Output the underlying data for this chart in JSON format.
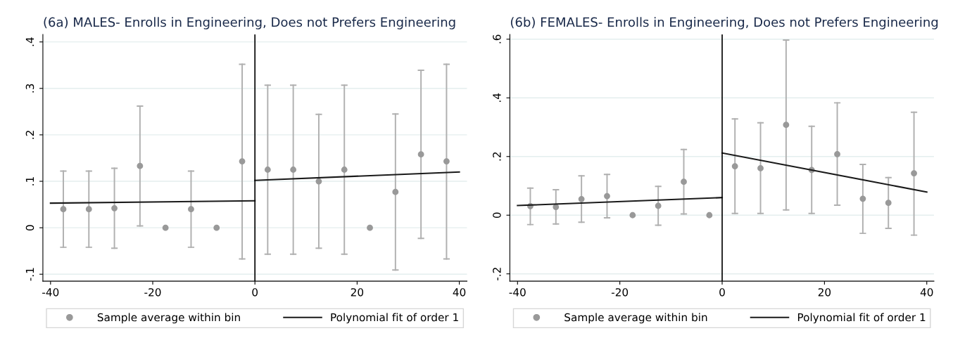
{
  "chart_data": [
    {
      "type": "scatter",
      "title": "(6a) MALES- Enrolls in Engineering, Does not Prefers Engineering",
      "xlim": [
        -41.5,
        41.5
      ],
      "xticks": [
        -40,
        -20,
        0,
        20,
        40
      ],
      "ylim": [
        -0.115,
        0.416
      ],
      "yticks": [
        {
          "value": -0.1,
          "label": "-.1"
        },
        0,
        {
          "value": 0.1,
          "label": ".1"
        },
        {
          "value": 0.2,
          "label": ".2"
        },
        {
          "value": 0.3,
          "label": ".3"
        },
        {
          "value": 0.4,
          "label": ".4"
        }
      ],
      "grid": "y",
      "legend": "bottom",
      "marker": "circle",
      "ref_lines": [
        {
          "axis": "x",
          "value": 0,
          "color": "#000000"
        }
      ],
      "series": [
        {
          "name": "Sample average within bin",
          "color": "#999999",
          "x": [
            -37.5,
            -32.5,
            -27.5,
            -22.5,
            -17.5,
            -12.5,
            -7.5,
            -2.5,
            2.5,
            7.5,
            12.5,
            17.5,
            22.5,
            27.5,
            32.5,
            37.5
          ],
          "values": [
            0.04,
            0.04,
            0.042,
            0.133,
            0,
            0.04,
            0,
            0.143,
            0.125,
            0.125,
            0.1,
            0.125,
            0,
            0.077,
            0.158,
            0.143
          ],
          "errors": [
            [
              -0.042,
              0.122
            ],
            [
              -0.042,
              0.122
            ],
            [
              -0.044,
              0.128
            ],
            [
              0.004,
              0.262
            ],
            null,
            [
              -0.042,
              0.122
            ],
            null,
            [
              -0.067,
              0.352
            ],
            [
              -0.057,
              0.307
            ],
            [
              -0.057,
              0.307
            ],
            [
              -0.044,
              0.244
            ],
            [
              -0.057,
              0.307
            ],
            null,
            [
              -0.091,
              0.245
            ],
            [
              -0.023,
              0.339
            ],
            [
              -0.067,
              0.352
            ]
          ]
        },
        {
          "name": "Polynomial fit of order 1",
          "type": "line",
          "marker": "none",
          "color": "#1a1a1a",
          "x": [
            -40,
            0
          ],
          "values": [
            0.053,
            0.058
          ]
        },
        {
          "type": "line",
          "marker": "none",
          "color": "#1a1a1a",
          "x": [
            0,
            40
          ],
          "values": [
            0.102,
            0.12
          ]
        }
      ]
    },
    {
      "type": "scatter",
      "title": "(6b) FEMALES- Enrolls in Engineering, Does not Prefers Engineering",
      "xlim": [
        -41.5,
        41.4
      ],
      "xticks": [
        -40,
        -20,
        0,
        20,
        40
      ],
      "ylim": [
        -0.225,
        0.616
      ],
      "yticks": [
        {
          "value": -0.2,
          "label": "-.2"
        },
        0,
        {
          "value": 0.2,
          "label": ".2"
        },
        {
          "value": 0.4,
          "label": ".4"
        },
        {
          "value": 0.6,
          "label": ".6"
        }
      ],
      "grid": "y",
      "legend": "bottom",
      "marker": "circle",
      "ref_lines": [
        {
          "axis": "x",
          "value": 0,
          "color": "#000000"
        }
      ],
      "series": [
        {
          "name": "Sample average within bin",
          "color": "#999999",
          "x": [
            -37.5,
            -32.5,
            -27.5,
            -22.5,
            -17.5,
            -12.5,
            -7.5,
            -2.5,
            2.5,
            7.5,
            12.5,
            17.5,
            22.5,
            27.5,
            32.5,
            37.5
          ],
          "values": [
            0.031,
            0.028,
            0.055,
            0.065,
            0,
            0.032,
            0.114,
            0,
            0.167,
            0.16,
            0.308,
            0.154,
            0.208,
            0.056,
            0.042,
            0.143
          ],
          "errors": [
            [
              -0.032,
              0.092
            ],
            [
              -0.03,
              0.087
            ],
            [
              -0.024,
              0.134
            ],
            [
              -0.009,
              0.139
            ],
            null,
            [
              -0.034,
              0.098
            ],
            [
              0.004,
              0.224
            ],
            null,
            [
              0.006,
              0.328
            ],
            [
              0.006,
              0.315
            ],
            [
              0.018,
              0.597
            ],
            [
              0.006,
              0.303
            ],
            [
              0.034,
              0.383
            ],
            [
              -0.062,
              0.173
            ],
            [
              -0.045,
              0.128
            ],
            [
              -0.068,
              0.351
            ]
          ]
        },
        {
          "name": "Polynomial fit of order 1",
          "type": "line",
          "marker": "none",
          "color": "#1a1a1a",
          "x": [
            -40,
            0
          ],
          "values": [
            0.033,
            0.06
          ]
        },
        {
          "type": "line",
          "marker": "none",
          "color": "#1a1a1a",
          "x": [
            0,
            40
          ],
          "values": [
            0.212,
            0.079
          ]
        }
      ]
    }
  ]
}
